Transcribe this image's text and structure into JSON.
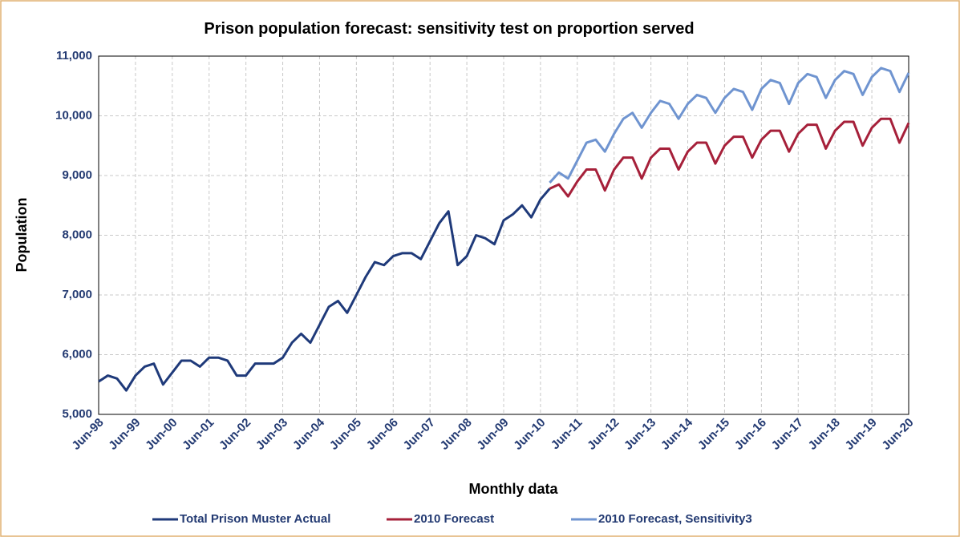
{
  "chart_data": {
    "type": "line",
    "title": "Prison population  forecast: sensitivity test on proportion served",
    "y_label": "Population",
    "x_label": "Monthly data",
    "categories": [
      "Jun-98",
      null,
      null,
      null,
      "Jun-99",
      null,
      null,
      null,
      "Jun-00",
      null,
      null,
      null,
      "Jun-01",
      null,
      null,
      null,
      "Jun-02",
      null,
      null,
      null,
      "Jun-03",
      null,
      null,
      null,
      "Jun-04",
      null,
      null,
      null,
      "Jun-05",
      null,
      null,
      null,
      "Jun-06",
      null,
      null,
      null,
      "Jun-07",
      null,
      null,
      null,
      "Jun-08",
      null,
      null,
      null,
      "Jun-09",
      null,
      null,
      null,
      "Jun-10",
      null,
      null,
      null,
      "Jun-11",
      null,
      null,
      null,
      "Jun-12",
      null,
      null,
      null,
      "Jun-13",
      null,
      null,
      null,
      "Jun-14",
      null,
      null,
      null,
      "Jun-15",
      null,
      null,
      null,
      "Jun-16",
      null,
      null,
      null,
      "Jun-17",
      null,
      null,
      null,
      "Jun-18",
      null,
      null,
      null,
      "Jun-19",
      null,
      null,
      null,
      "Jun-20"
    ],
    "series": [
      {
        "name": "Total Prison Muster Actual",
        "color": "#1f3a7a",
        "values": [
          5550,
          5650,
          5600,
          5400,
          5650,
          5800,
          5850,
          5500,
          5700,
          5900,
          5900,
          5800,
          5950,
          5950,
          5900,
          5650,
          5650,
          5850,
          5850,
          5850,
          5950,
          6200,
          6350,
          6200,
          6500,
          6800,
          6900,
          6700,
          7000,
          7300,
          7550,
          7500,
          7650,
          7700,
          7700,
          7600,
          7900,
          8200,
          8400,
          7500,
          7650,
          8000,
          7950,
          7850,
          8250,
          8350,
          8500,
          8300,
          8600,
          8780,
          null,
          null,
          null,
          null,
          null,
          null,
          null,
          null,
          null,
          null,
          null,
          null,
          null,
          null,
          null,
          null,
          null,
          null,
          null,
          null,
          null,
          null,
          null,
          null,
          null,
          null,
          null,
          null,
          null,
          null,
          null,
          null,
          null,
          null,
          null,
          null,
          null,
          null,
          null
        ]
      },
      {
        "name": "2010 Forecast",
        "color": "#a6203a",
        "values": [
          null,
          null,
          null,
          null,
          null,
          null,
          null,
          null,
          null,
          null,
          null,
          null,
          null,
          null,
          null,
          null,
          null,
          null,
          null,
          null,
          null,
          null,
          null,
          null,
          null,
          null,
          null,
          null,
          null,
          null,
          null,
          null,
          null,
          null,
          null,
          null,
          null,
          null,
          null,
          null,
          null,
          null,
          null,
          null,
          null,
          null,
          null,
          null,
          null,
          8780,
          8850,
          8650,
          8900,
          9100,
          9100,
          8750,
          9100,
          9300,
          9300,
          8950,
          9300,
          9450,
          9450,
          9100,
          9400,
          9550,
          9550,
          9200,
          9500,
          9650,
          9650,
          9300,
          9600,
          9750,
          9750,
          9400,
          9700,
          9850,
          9850,
          9450,
          9750,
          9900,
          9900,
          9500,
          9800,
          9950,
          9950,
          9550,
          9880
        ]
      },
      {
        "name": "2010 Forecast, Sensitivity3",
        "color": "#6f94d0",
        "values": [
          null,
          null,
          null,
          null,
          null,
          null,
          null,
          null,
          null,
          null,
          null,
          null,
          null,
          null,
          null,
          null,
          null,
          null,
          null,
          null,
          null,
          null,
          null,
          null,
          null,
          null,
          null,
          null,
          null,
          null,
          null,
          null,
          null,
          null,
          null,
          null,
          null,
          null,
          null,
          null,
          null,
          null,
          null,
          null,
          null,
          null,
          null,
          null,
          null,
          8880,
          9050,
          8950,
          9250,
          9550,
          9600,
          9400,
          9700,
          9950,
          10050,
          9800,
          10050,
          10250,
          10200,
          9950,
          10200,
          10350,
          10300,
          10050,
          10300,
          10450,
          10400,
          10100,
          10450,
          10600,
          10550,
          10200,
          10550,
          10700,
          10650,
          10300,
          10600,
          10750,
          10700,
          10350,
          10650,
          10800,
          10750,
          10400,
          10720
        ]
      }
    ],
    "ylim": [
      5000,
      11000
    ],
    "yticks": [
      {
        "value": 5000,
        "label": "5,000"
      },
      {
        "value": 6000,
        "label": "6,000"
      },
      {
        "value": 7000,
        "label": "7,000"
      },
      {
        "value": 8000,
        "label": "8,000"
      },
      {
        "value": 9000,
        "label": "9,000"
      },
      {
        "value": 10000,
        "label": "10,000"
      },
      {
        "value": 11000,
        "label": "11,000"
      }
    ],
    "grid": true,
    "legend": "bottom"
  }
}
